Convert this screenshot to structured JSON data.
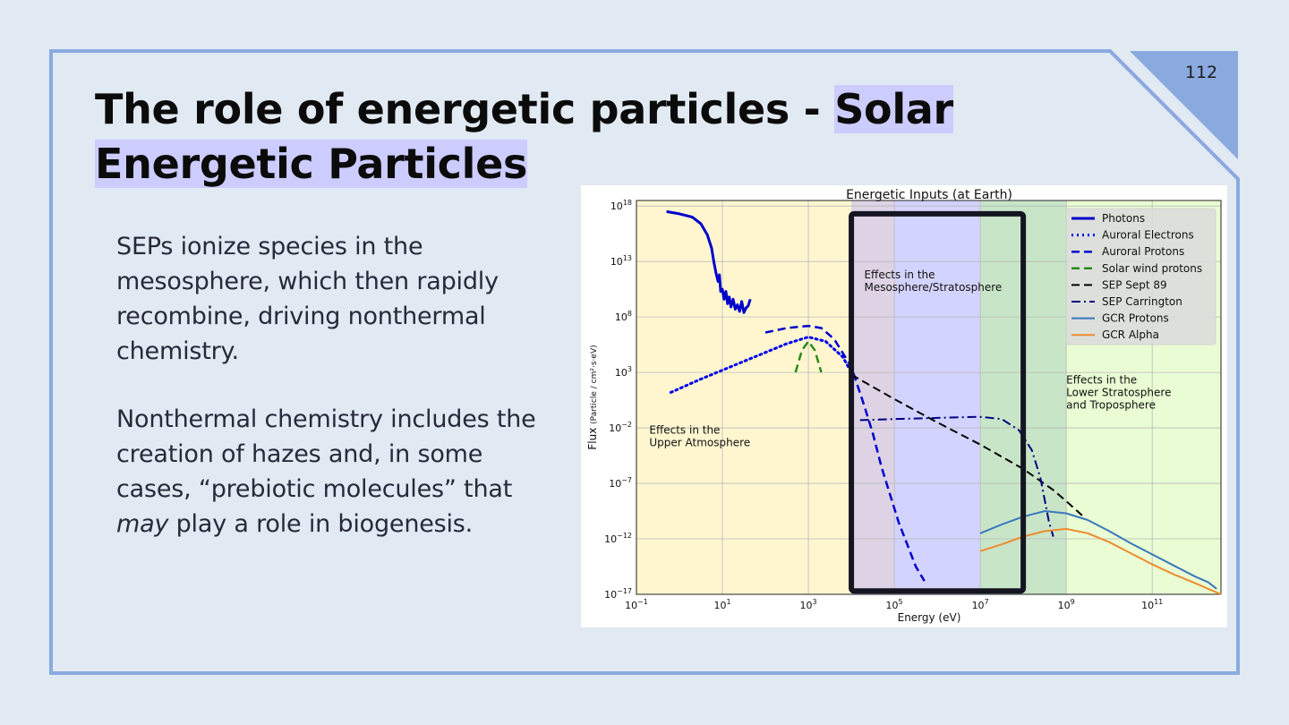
{
  "slide": {
    "page_number": "112",
    "title_plain": "The role of energetic particles - ",
    "title_highlight_1": "Solar",
    "title_highlight_2": "Energetic Particles",
    "para1": "SEPs ionize species in the mesosphere, which then rapidly recombine, driving nonthermal chemistry.",
    "para2_before": "Nonthermal chemistry includes the creation of hazes and, in some cases, “prebiotic molecules” that ",
    "para2_italic": "may",
    "para2_after": " play a role in biogenesis.",
    "colors": {
      "background": "#e1e9f2",
      "frame": "#8aaadf",
      "highlight": "#ccccff",
      "corner": "#8aaadf"
    }
  },
  "chart_data": {
    "type": "line",
    "title": "Energetic Inputs (at Earth)",
    "xlabel": "Energy (eV)",
    "ylabel_prefix": "Flux",
    "ylabel_unit": "(Particle / cm²·s·eV)",
    "x_scale": "log",
    "y_scale": "log",
    "xlim_log10": [
      -1,
      12.6
    ],
    "ylim_log10": [
      -17,
      18.5
    ],
    "x_ticks_log10": [
      -1,
      1,
      3,
      5,
      7,
      9,
      11
    ],
    "y_ticks_log10": [
      -17,
      -12,
      -7,
      -2,
      3,
      8,
      13,
      18
    ],
    "grid": true,
    "legend_position": "upper right",
    "regions": [
      {
        "from_log10": -1,
        "to_log10": 5,
        "color": "#fff6d0",
        "label": "Effects in the\nUpper Atmosphere",
        "label_at": [
          -0.7,
          -2.5
        ]
      },
      {
        "from_log10": 5,
        "to_log10": 7,
        "color": "#d3d3ff",
        "label": "Effects in the\nMesosphere/Stratosphere",
        "label_at": [
          4.3,
          11.5
        ]
      },
      {
        "from_log10": 7,
        "to_log10": 12.6,
        "color": "#e9fcd3",
        "label": "Effects in the\nLower Stratosphere\nand Troposphere",
        "label_at": [
          9.0,
          2.0
        ]
      }
    ],
    "overlap_band": {
      "from_log10": 4.0,
      "to_log10": 5.0,
      "color": "#ddd3e4"
    },
    "overlap_band_2": {
      "from_log10": 7.0,
      "to_log10": 9.0,
      "color": "#c6e4c7"
    },
    "highlight_box": {
      "x_log10": [
        4.0,
        8.0
      ],
      "y_log10": [
        -16.7,
        17.3
      ]
    },
    "series": [
      {
        "name": "Photons",
        "color": "#0000cc",
        "dash": "solid",
        "width": 3,
        "x": [
          -0.3,
          0.0,
          0.3,
          0.5,
          0.65,
          0.75,
          0.8,
          0.85,
          0.9,
          0.93,
          0.96,
          1.0,
          1.04,
          1.08,
          1.12,
          1.16,
          1.2,
          1.25,
          1.3,
          1.35,
          1.4,
          1.45,
          1.5,
          1.55,
          1.6,
          1.65
        ],
        "y": [
          17.5,
          17.3,
          17.0,
          16.4,
          15.4,
          14.2,
          13.0,
          12.0,
          11.2,
          11.8,
          10.3,
          10.5,
          9.6,
          10.3,
          9.2,
          9.8,
          8.9,
          9.6,
          8.7,
          9.1,
          8.5,
          9.4,
          8.4,
          8.8,
          9.0,
          9.6
        ]
      },
      {
        "name": "Auroral Electrons",
        "color": "#0000ee",
        "dash": "dotted",
        "width": 3,
        "x": [
          -0.2,
          0.5,
          1.5,
          2.5,
          3.0,
          3.4,
          3.8,
          4.0
        ],
        "y": [
          1.2,
          2.4,
          4.0,
          5.6,
          6.2,
          5.8,
          4.4,
          3.0
        ]
      },
      {
        "name": "Auroral Protons",
        "color": "#0000cc",
        "dash": "dashed",
        "width": 2.5,
        "x": [
          2.0,
          2.5,
          3.0,
          3.3,
          3.6,
          4.0,
          4.3,
          4.5,
          4.7,
          4.9,
          5.1,
          5.3,
          5.5,
          5.7
        ],
        "y": [
          6.6,
          7.0,
          7.2,
          7.0,
          6.0,
          3.5,
          0.0,
          -2.5,
          -5.5,
          -8.0,
          -10.5,
          -12.5,
          -14.5,
          -15.8
        ]
      },
      {
        "name": "Solar wind  protons",
        "color": "#2a8a1a",
        "dash": "dashed",
        "width": 2.5,
        "x": [
          2.7,
          2.85,
          3.0,
          3.15,
          3.3
        ],
        "y": [
          3.0,
          5.0,
          5.8,
          5.0,
          3.0
        ]
      },
      {
        "name": "SEP Sept 89",
        "color": "#000000",
        "dash": "dashed",
        "width": 2,
        "x": [
          4.0,
          5.0,
          6.0,
          7.0,
          8.0,
          8.7,
          9.0,
          9.4
        ],
        "y": [
          2.8,
          0.6,
          -1.5,
          -3.5,
          -5.7,
          -7.6,
          -8.6,
          -10.0
        ]
      },
      {
        "name": "SEP Carrington",
        "color": "#000080",
        "dash": "dashdot",
        "width": 2,
        "x": [
          4.2,
          5.0,
          6.0,
          7.0,
          7.5,
          7.9,
          8.2,
          8.4,
          8.5,
          8.6,
          8.7
        ],
        "y": [
          -1.3,
          -1.2,
          -1.1,
          -1.0,
          -1.2,
          -2.2,
          -4.0,
          -6.5,
          -8.5,
          -10.5,
          -11.8
        ]
      },
      {
        "name": "GCR Protons",
        "color": "#3a78bc",
        "dash": "solid",
        "width": 2,
        "x": [
          7.0,
          7.5,
          8.0,
          8.5,
          9.0,
          9.5,
          10.0,
          10.5,
          11.0,
          11.5,
          12.0,
          12.3,
          12.5
        ],
        "y": [
          -11.5,
          -10.7,
          -10.0,
          -9.5,
          -9.7,
          -10.3,
          -11.3,
          -12.4,
          -13.4,
          -14.4,
          -15.4,
          -15.9,
          -16.5
        ]
      },
      {
        "name": "GCR Alpha",
        "color": "#ee8c30",
        "dash": "solid",
        "width": 2,
        "x": [
          7.0,
          7.5,
          8.0,
          8.5,
          9.0,
          9.5,
          10.0,
          10.5,
          11.0,
          11.5,
          12.0,
          12.3,
          12.6
        ],
        "y": [
          -13.1,
          -12.5,
          -11.8,
          -11.3,
          -11.1,
          -11.5,
          -12.3,
          -13.3,
          -14.3,
          -15.2,
          -16.0,
          -16.5,
          -17.0
        ]
      }
    ]
  }
}
